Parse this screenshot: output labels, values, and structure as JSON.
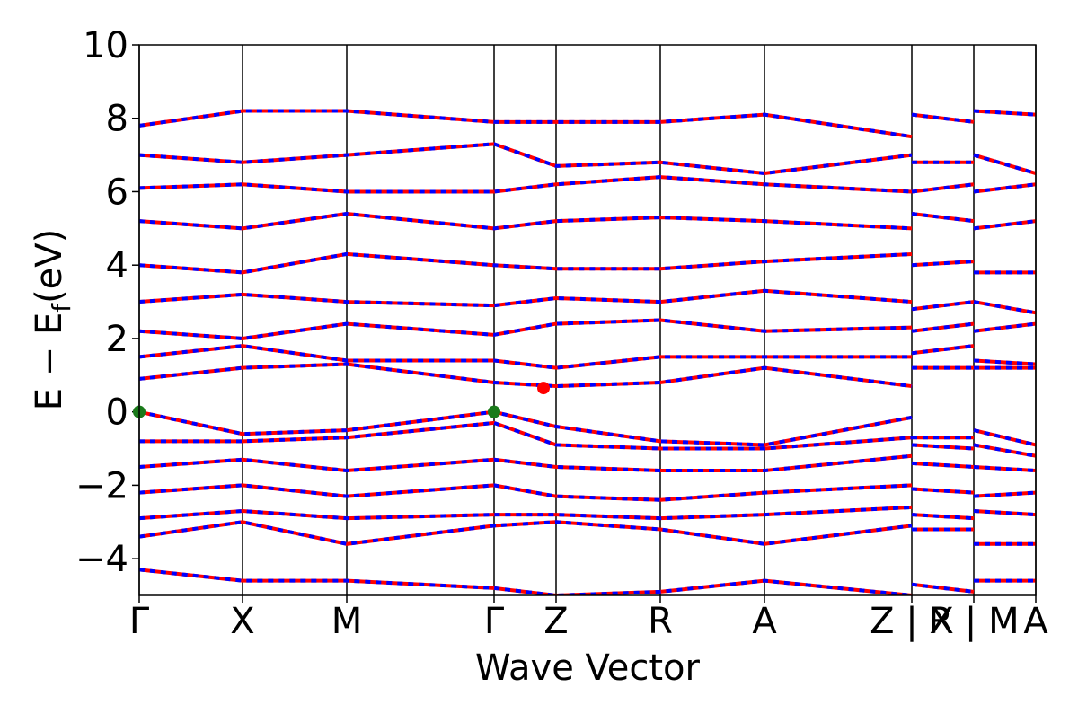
{
  "chart_data": {
    "type": "band-structure",
    "xlabel": "Wave Vector",
    "ylabel": {
      "main": "E − E",
      "sub": "f",
      "unit": "(eV)"
    },
    "xlim": [
      0,
      998
    ],
    "ylim": [
      -5,
      10
    ],
    "yticks": [
      {
        "value": -4,
        "label": "−4"
      },
      {
        "value": -2,
        "label": "−2"
      },
      0,
      2,
      4,
      6,
      8,
      10
    ],
    "xticks": [
      {
        "value": 0,
        "label": "Γ"
      },
      {
        "value": 115,
        "label": "X"
      },
      {
        "value": 231,
        "label": "M"
      },
      {
        "value": 395,
        "label": "Γ"
      },
      {
        "value": 464,
        "label": "Z"
      },
      {
        "value": 580,
        "label": "R"
      },
      {
        "value": 696,
        "label": "A"
      },
      {
        "value": 860,
        "label": "Z | X"
      },
      {
        "value": 929,
        "label": "R | M"
      },
      {
        "value": 998,
        "label": "A"
      }
    ],
    "colors": [
      "#ff0000",
      "#0000ff"
    ],
    "x": [
      0,
      115,
      231,
      395,
      464,
      580,
      696,
      860,
      860,
      860,
      929,
      929,
      929,
      998
    ],
    "bands": [
      [
        0,
        -0.6,
        -0.5,
        0,
        -0.4,
        -0.8,
        -0.9,
        -0.15,
        null,
        -0.7,
        -0.7,
        null,
        -0.5,
        -0.9
      ],
      [
        -0.8,
        -0.8,
        -0.7,
        -0.3,
        -0.9,
        -1.0,
        -1.0,
        -0.7,
        null,
        -0.9,
        -1.0,
        null,
        -0.9,
        -1.2
      ],
      [
        -1.5,
        -1.3,
        -1.6,
        -1.3,
        -1.5,
        -1.6,
        -1.6,
        -1.2,
        null,
        -1.4,
        -1.5,
        null,
        -1.5,
        -1.6
      ],
      [
        -2.2,
        -2.0,
        -2.3,
        -2.0,
        -2.3,
        -2.4,
        -2.2,
        -2.0,
        null,
        -2.1,
        -2.2,
        null,
        -2.3,
        -2.2
      ],
      [
        -2.9,
        -2.7,
        -2.9,
        -2.8,
        -2.8,
        -2.9,
        -2.8,
        -2.6,
        null,
        -2.8,
        -2.9,
        null,
        -2.7,
        -2.8
      ],
      [
        -3.4,
        -3.0,
        -3.6,
        -3.1,
        -3.0,
        -3.2,
        -3.6,
        -3.1,
        null,
        -3.2,
        -3.2,
        null,
        -3.6,
        -3.6
      ],
      [
        -4.3,
        -4.6,
        -4.6,
        -4.8,
        -5.0,
        -4.9,
        -4.6,
        -5.0,
        null,
        -4.7,
        -4.9,
        null,
        -4.6,
        -4.6
      ],
      [
        0.9,
        1.2,
        1.3,
        0.8,
        0.7,
        0.8,
        1.2,
        0.7,
        null,
        1.2,
        1.2,
        null,
        1.2,
        1.2
      ],
      [
        1.5,
        1.8,
        1.4,
        1.4,
        1.2,
        1.5,
        1.5,
        1.5,
        null,
        1.6,
        1.8,
        null,
        1.4,
        1.3
      ],
      [
        2.2,
        2.0,
        2.4,
        2.1,
        2.4,
        2.5,
        2.2,
        2.3,
        null,
        2.2,
        2.4,
        null,
        2.2,
        2.4
      ],
      [
        3.0,
        3.2,
        3.0,
        2.9,
        3.1,
        3.0,
        3.3,
        3.0,
        null,
        2.8,
        3.0,
        null,
        3.0,
        2.7
      ],
      [
        4.0,
        3.8,
        4.3,
        4.0,
        3.9,
        3.9,
        4.1,
        4.3,
        null,
        4.0,
        4.1,
        null,
        3.8,
        3.8
      ],
      [
        5.2,
        5.0,
        5.4,
        5.0,
        5.2,
        5.3,
        5.2,
        5.0,
        null,
        5.4,
        5.2,
        null,
        5.0,
        5.2
      ],
      [
        6.1,
        6.2,
        6.0,
        6.0,
        6.2,
        6.4,
        6.2,
        6.0,
        null,
        6.0,
        6.2,
        null,
        6.0,
        6.2
      ],
      [
        7.0,
        6.8,
        7.0,
        7.3,
        6.7,
        6.8,
        6.5,
        7.0,
        null,
        6.8,
        6.8,
        null,
        7.0,
        6.5
      ],
      [
        7.8,
        8.2,
        8.2,
        7.9,
        7.9,
        7.9,
        8.1,
        7.5,
        null,
        8.1,
        7.9,
        null,
        8.2,
        8.1
      ]
    ],
    "vbm": {
      "x": [
        0,
        395
      ],
      "y": [
        0,
        0
      ],
      "color": "#1a7a1a"
    },
    "cbm": {
      "x": [
        450
      ],
      "y": [
        0.65
      ],
      "color": "#ff0000"
    }
  }
}
